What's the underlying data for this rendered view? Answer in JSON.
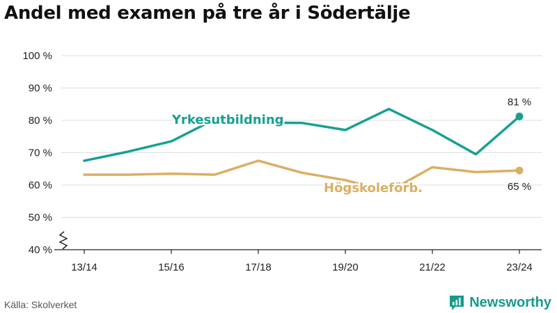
{
  "title": "Andel med examen på tre år i Södertälje",
  "source": "Källa: Skolverket",
  "brand": "Newsworthy",
  "colors": {
    "yrkes": "#16a091",
    "hogskole": "#dcae62",
    "grid": "#dddddd",
    "text": "#222222"
  },
  "chart_data": {
    "type": "line",
    "x": [
      "13/14",
      "14/15",
      "15/16",
      "16/17",
      "17/18",
      "18/19",
      "19/20",
      "20/21",
      "21/22",
      "22/23",
      "23/24"
    ],
    "xticks": [
      "13/14",
      "15/16",
      "17/18",
      "19/20",
      "21/22",
      "23/24"
    ],
    "yticks": [
      "40 %",
      "50 %",
      "60 %",
      "70 %",
      "80 %",
      "90 %",
      "100 %"
    ],
    "ylim": [
      40,
      100
    ],
    "grid": true,
    "series": [
      {
        "name": "Yrkesutbildning",
        "color": "#16a091",
        "values": [
          67.5,
          70.3,
          73.5,
          80.3,
          79.3,
          79.2,
          77.0,
          83.5,
          77.0,
          69.5,
          81.2
        ],
        "end_label": "81 %"
      },
      {
        "name": "Högskoleförb.",
        "color": "#dcae62",
        "values": [
          63.2,
          63.2,
          63.5,
          63.2,
          67.5,
          63.8,
          61.5,
          58.0,
          65.5,
          64.0,
          64.5
        ],
        "end_label": "65 %"
      }
    ]
  }
}
